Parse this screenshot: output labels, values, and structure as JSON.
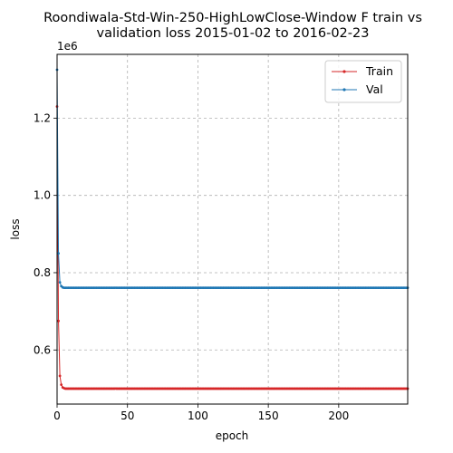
{
  "chart_data": {
    "type": "line",
    "title_lines": [
      "Roondiwala-Std-Win-250-HighLowClose-Window F train vs",
      "validation loss 2015-01-02 to 2016-02-23"
    ],
    "xlabel": "epoch",
    "ylabel": "loss",
    "y_offset_label": "1e6",
    "xlim": [
      0,
      249
    ],
    "ylim": [
      460000,
      1365000
    ],
    "x_ticks": [
      0,
      50,
      100,
      150,
      200
    ],
    "x_tick_labels": [
      "0",
      "50",
      "100",
      "150",
      "200"
    ],
    "y_ticks": [
      600000,
      800000,
      1000000,
      1200000
    ],
    "y_tick_labels": [
      "0.6",
      "0.8",
      "1.0",
      "1.2"
    ],
    "grid": true,
    "legend_position": "top-right",
    "epochs": 250,
    "series": [
      {
        "name": "Train",
        "color": "#d62728",
        "initial_values": [
          1230000,
          675000,
          533000,
          510000,
          503000,
          501000
        ],
        "plateau_value": 500000
      },
      {
        "name": "Val",
        "color": "#1f77b4",
        "initial_values": [
          1325000,
          850000,
          775000,
          765000,
          762000,
          761000
        ],
        "plateau_value": 761000
      }
    ]
  }
}
